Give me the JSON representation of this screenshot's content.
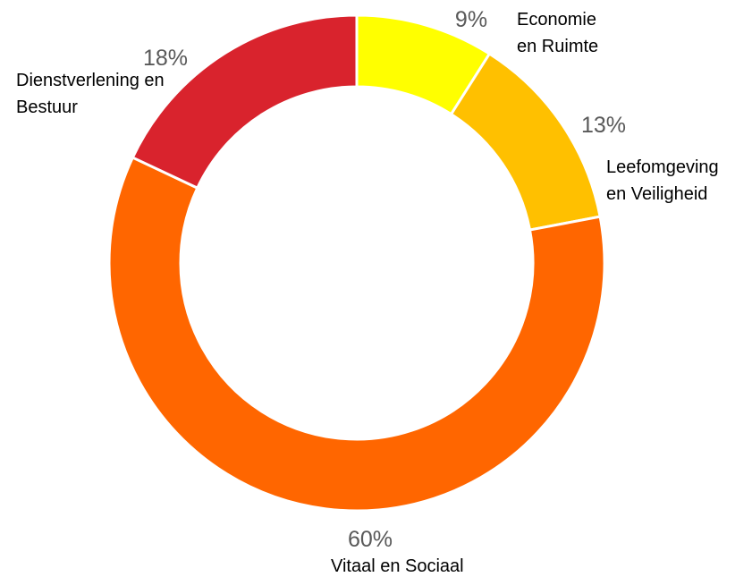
{
  "chart_data": {
    "type": "donut",
    "categories": [
      "Economie en Ruimte",
      "Leefomgeving en Veiligheid",
      "Vitaal en Sociaal",
      "Dienstverlening en Bestuur"
    ],
    "values": [
      9,
      13,
      60,
      18
    ],
    "value_labels": [
      "9%",
      "13%",
      "60%",
      "18%"
    ],
    "colors": [
      "#ffff00",
      "#ffc000",
      "#ff6600",
      "#d9232d"
    ]
  }
}
